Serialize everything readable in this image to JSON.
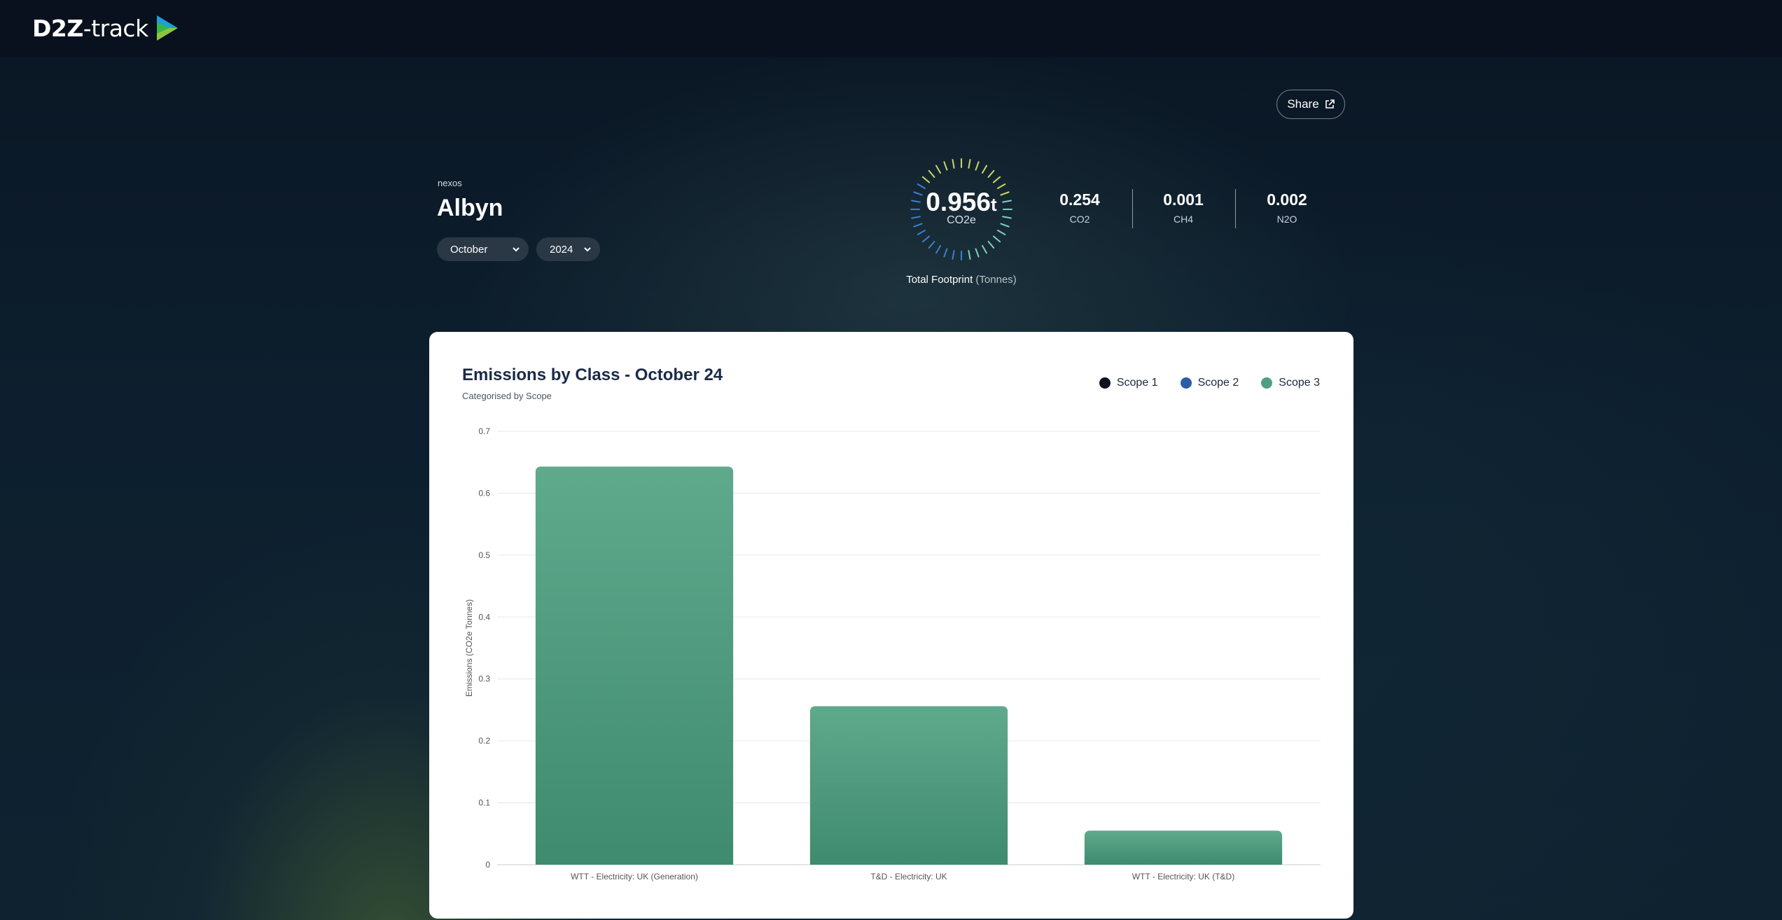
{
  "app": {
    "logo_bold": "D2Z",
    "logo_light": "-track"
  },
  "header": {
    "share_label": "Share",
    "org": "nexos",
    "site": "Albyn",
    "month_select": "October",
    "year_select": "2024"
  },
  "footprint": {
    "value": "0.956",
    "unit": "t",
    "sub": "CO2e",
    "label": "Total Footprint",
    "label_unit": "(Tonnes)",
    "gases": [
      {
        "value": "0.254",
        "label": "CO2"
      },
      {
        "value": "0.001",
        "label": "CH4"
      },
      {
        "value": "0.002",
        "label": "N2O"
      }
    ]
  },
  "colors": {
    "scope1": "#0f1320",
    "scope2": "#2b5ea8",
    "scope3": "#4f9f82"
  },
  "card": {
    "title": "Emissions by Class - October 24",
    "subtitle": "Categorised by Scope",
    "legend": [
      "Scope 1",
      "Scope 2",
      "Scope 3"
    ]
  },
  "chart_data": {
    "type": "bar",
    "title": "Emissions by Class - October 24",
    "subtitle": "Categorised by Scope",
    "xlabel": "",
    "ylabel": "Emissions (CO2e Tonnes)",
    "ylim": [
      0,
      0.7
    ],
    "yticks": [
      0,
      0.1,
      0.2,
      0.3,
      0.4,
      0.5,
      0.6,
      0.7
    ],
    "grid": true,
    "legend_position": "top-right",
    "categories": [
      "WTT - Electricity: UK (Generation)",
      "T&D - Electricity: UK",
      "WTT - Electricity: UK (T&D)"
    ],
    "series": [
      {
        "name": "Scope 3",
        "values": [
          0.643,
          0.256,
          0.055
        ]
      }
    ]
  }
}
